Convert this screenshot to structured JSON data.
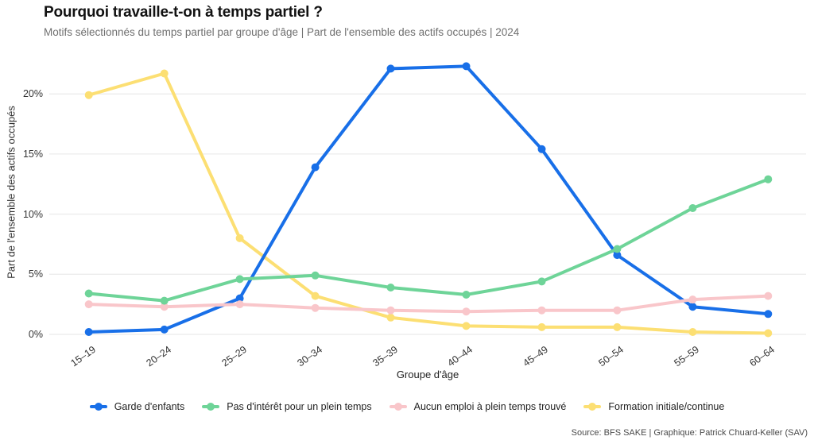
{
  "header": {
    "title": "Pourquoi travaille-t-on à temps partiel ?",
    "subtitle": "Motifs sélectionnés du temps partiel par groupe d'âge | Part de l'ensemble des actifs occupés | 2024"
  },
  "chart_data": {
    "type": "line",
    "title": "Pourquoi travaille-t-on à temps partiel ?",
    "subtitle": "Motifs sélectionnés du temps partiel par groupe d'âge | Part de l'ensemble des actifs occupés | 2024",
    "xlabel": "Groupe d'âge",
    "ylabel": "Part de l'ensemble des actifs occupés",
    "categories": [
      "15–19",
      "20–24",
      "25–29",
      "30–34",
      "35–39",
      "40–44",
      "45–49",
      "50–54",
      "55–59",
      "60–64"
    ],
    "yticks": [
      "20%",
      "15%",
      "10%",
      "5%",
      "0%"
    ],
    "ylim": [
      0,
      23
    ],
    "grid": "horizontal-only",
    "legend_position": "bottom",
    "point_markers": true,
    "series": [
      {
        "name": "Garde d'enfants",
        "color": "#186fe8",
        "values": [
          0.2,
          0.4,
          3.0,
          13.9,
          22.1,
          22.3,
          15.4,
          6.6,
          2.3,
          1.7
        ]
      },
      {
        "name": "Pas d'intérêt pour un plein temps",
        "color": "#6ed498",
        "values": [
          3.4,
          2.8,
          4.6,
          4.9,
          3.9,
          3.3,
          4.4,
          7.1,
          10.5,
          12.9
        ]
      },
      {
        "name": "Aucun emploi à plein temps trouvé",
        "color": "#f9c6ca",
        "values": [
          2.5,
          2.3,
          2.5,
          2.2,
          2.0,
          1.9,
          2.0,
          2.0,
          2.9,
          3.2
        ]
      },
      {
        "name": "Formation initiale/continue",
        "color": "#fcdf73",
        "values": [
          19.9,
          21.7,
          8.0,
          3.2,
          1.4,
          0.7,
          0.6,
          0.6,
          0.2,
          0.1
        ]
      }
    ]
  },
  "footer": {
    "source": "Source: BFS SAKE | Graphique: Patrick Chuard-Keller (SAV)"
  }
}
